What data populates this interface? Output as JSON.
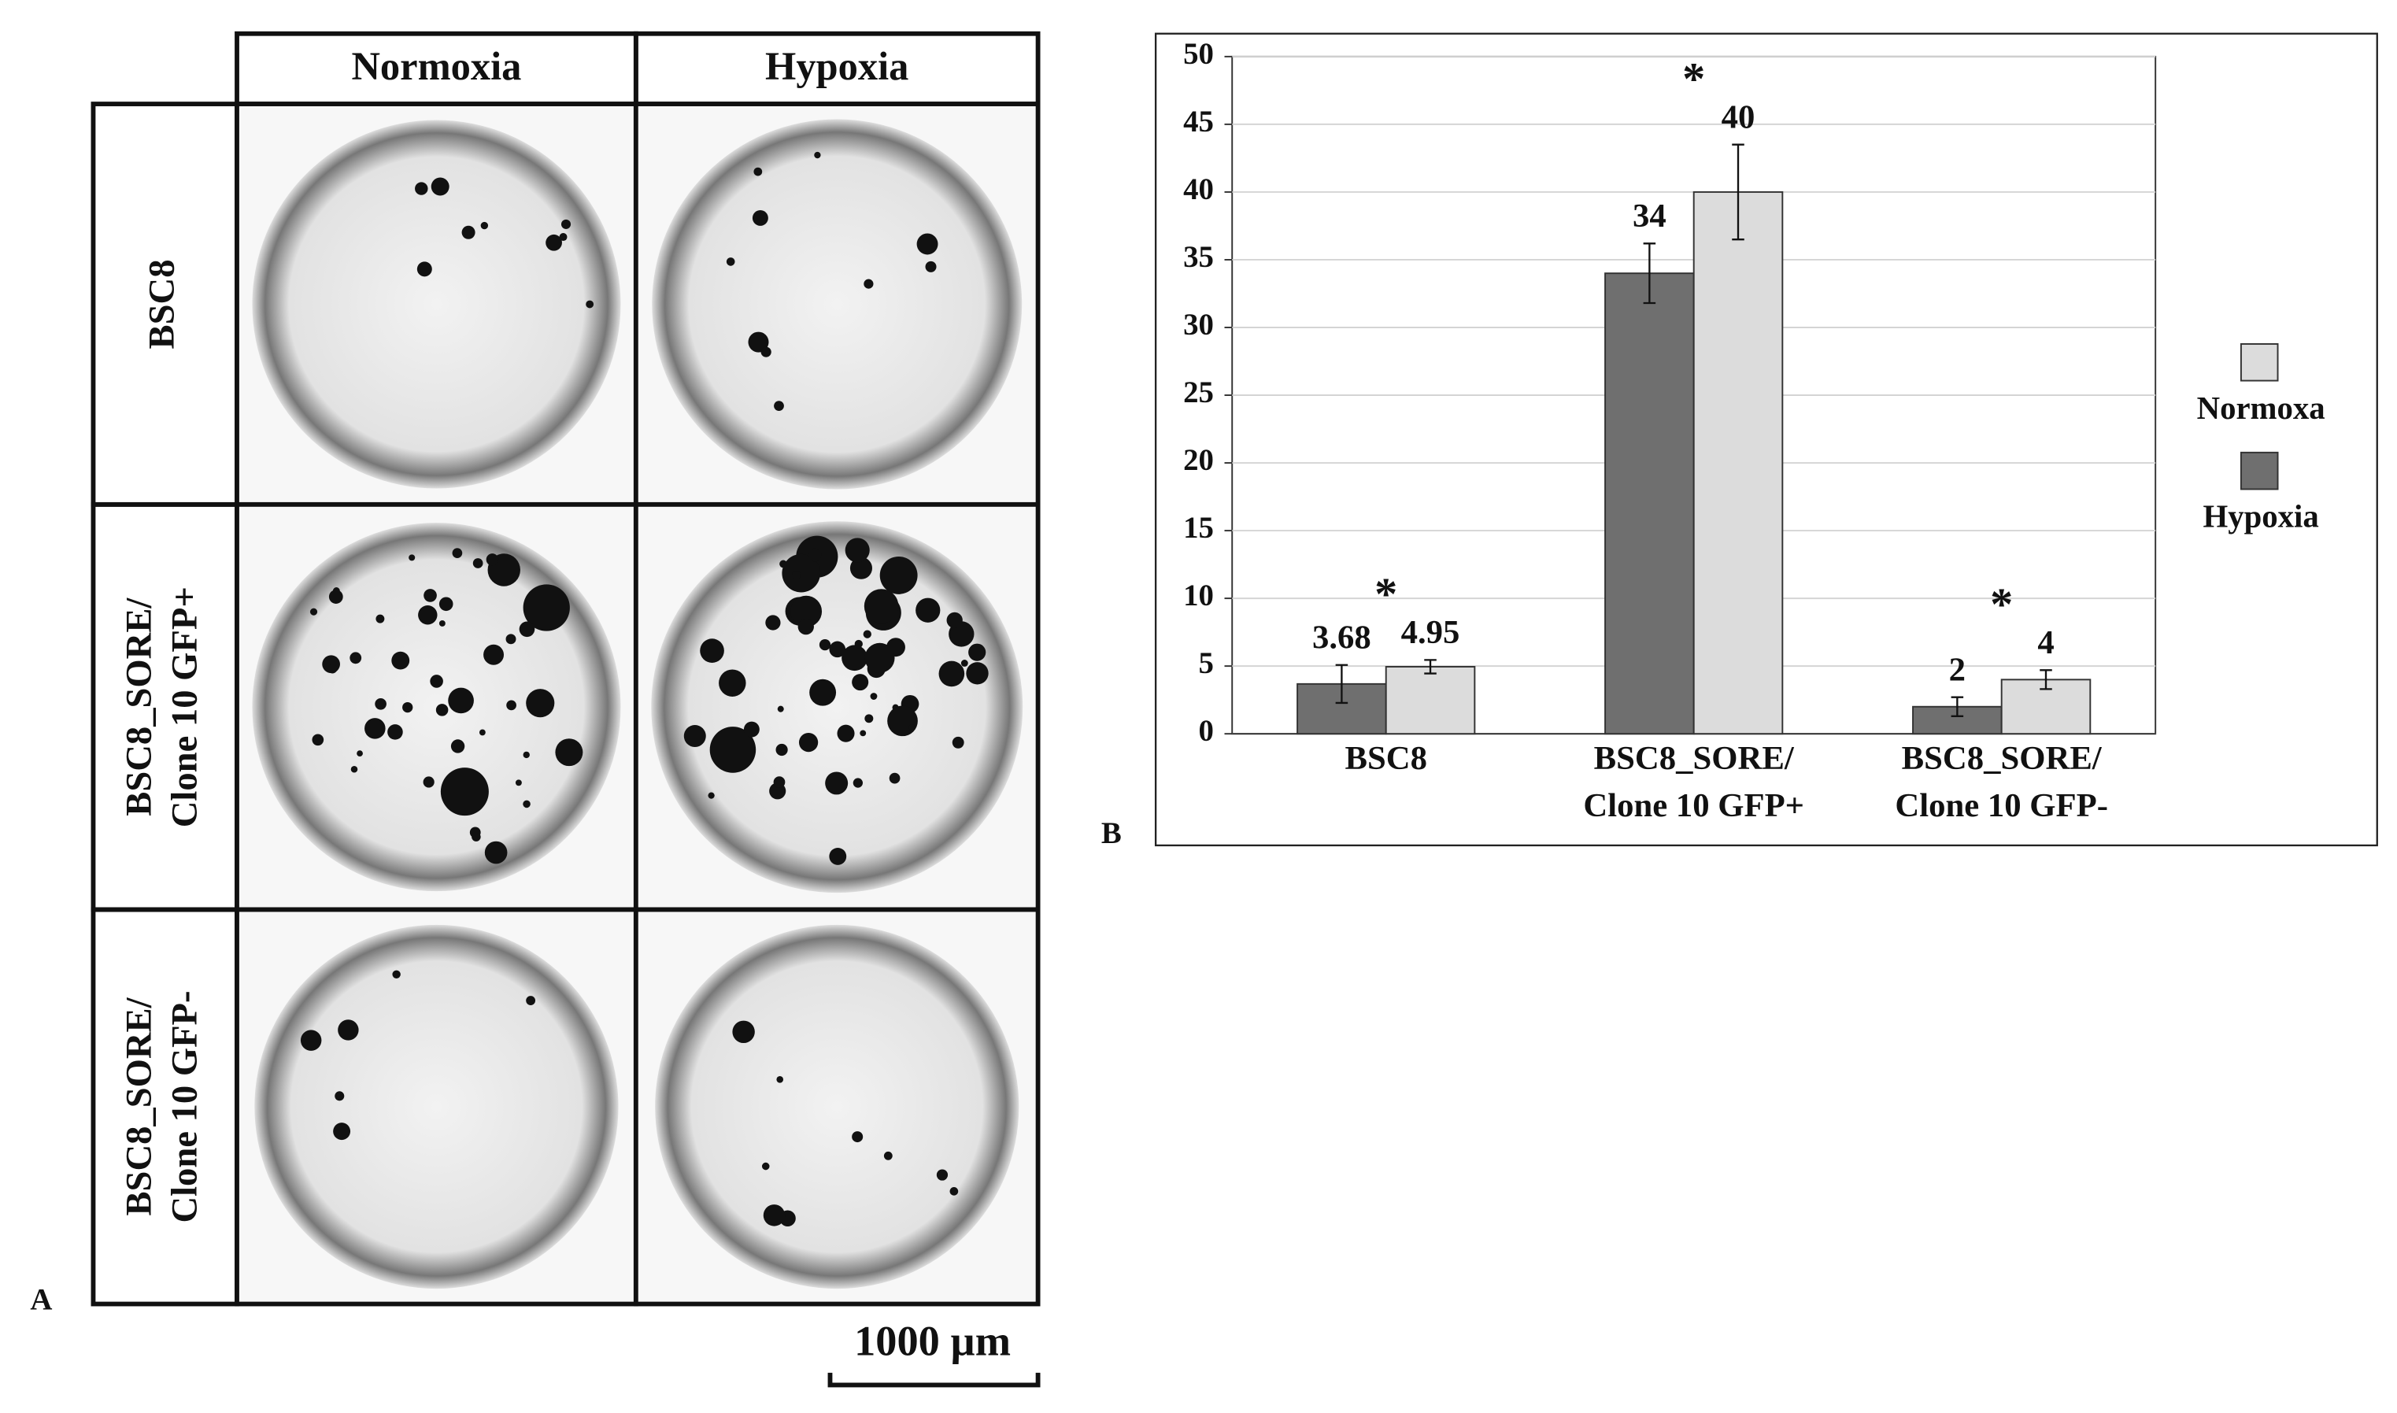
{
  "figure": {
    "panel_a": {
      "label": "A",
      "columns": [
        "Normoxia",
        "Hypoxia"
      ],
      "rows": [
        [
          "BSC8"
        ],
        [
          "BSC8_SORE/",
          "Clone 10 GFP+"
        ],
        [
          "BSC8_SORE/",
          "Clone 10 GFP-"
        ]
      ],
      "scale_bar": "1000 µm"
    },
    "panel_b_label": "B"
  },
  "chart_data": {
    "type": "bar",
    "categories": [
      [
        "BSC8"
      ],
      [
        "BSC8_SORE/",
        "Clone 10 GFP+"
      ],
      [
        "BSC8_SORE/",
        "Clone 10 GFP-"
      ]
    ],
    "series": [
      {
        "name": "Hypoxia",
        "color": "#6f6f6f",
        "values": [
          3.68,
          34,
          2
        ],
        "errors": [
          1.4,
          2.2,
          0.7
        ]
      },
      {
        "name": "Normoxa",
        "color": "#dcdcdc",
        "values": [
          4.95,
          40,
          4
        ],
        "errors": [
          0.5,
          3.5,
          0.7
        ]
      }
    ],
    "significance": [
      "*",
      "*",
      "*"
    ],
    "ylim": [
      0,
      50
    ],
    "yticks": [
      0,
      5,
      10,
      15,
      20,
      25,
      30,
      35,
      40,
      45,
      50
    ],
    "grid": true,
    "legend": "right"
  }
}
